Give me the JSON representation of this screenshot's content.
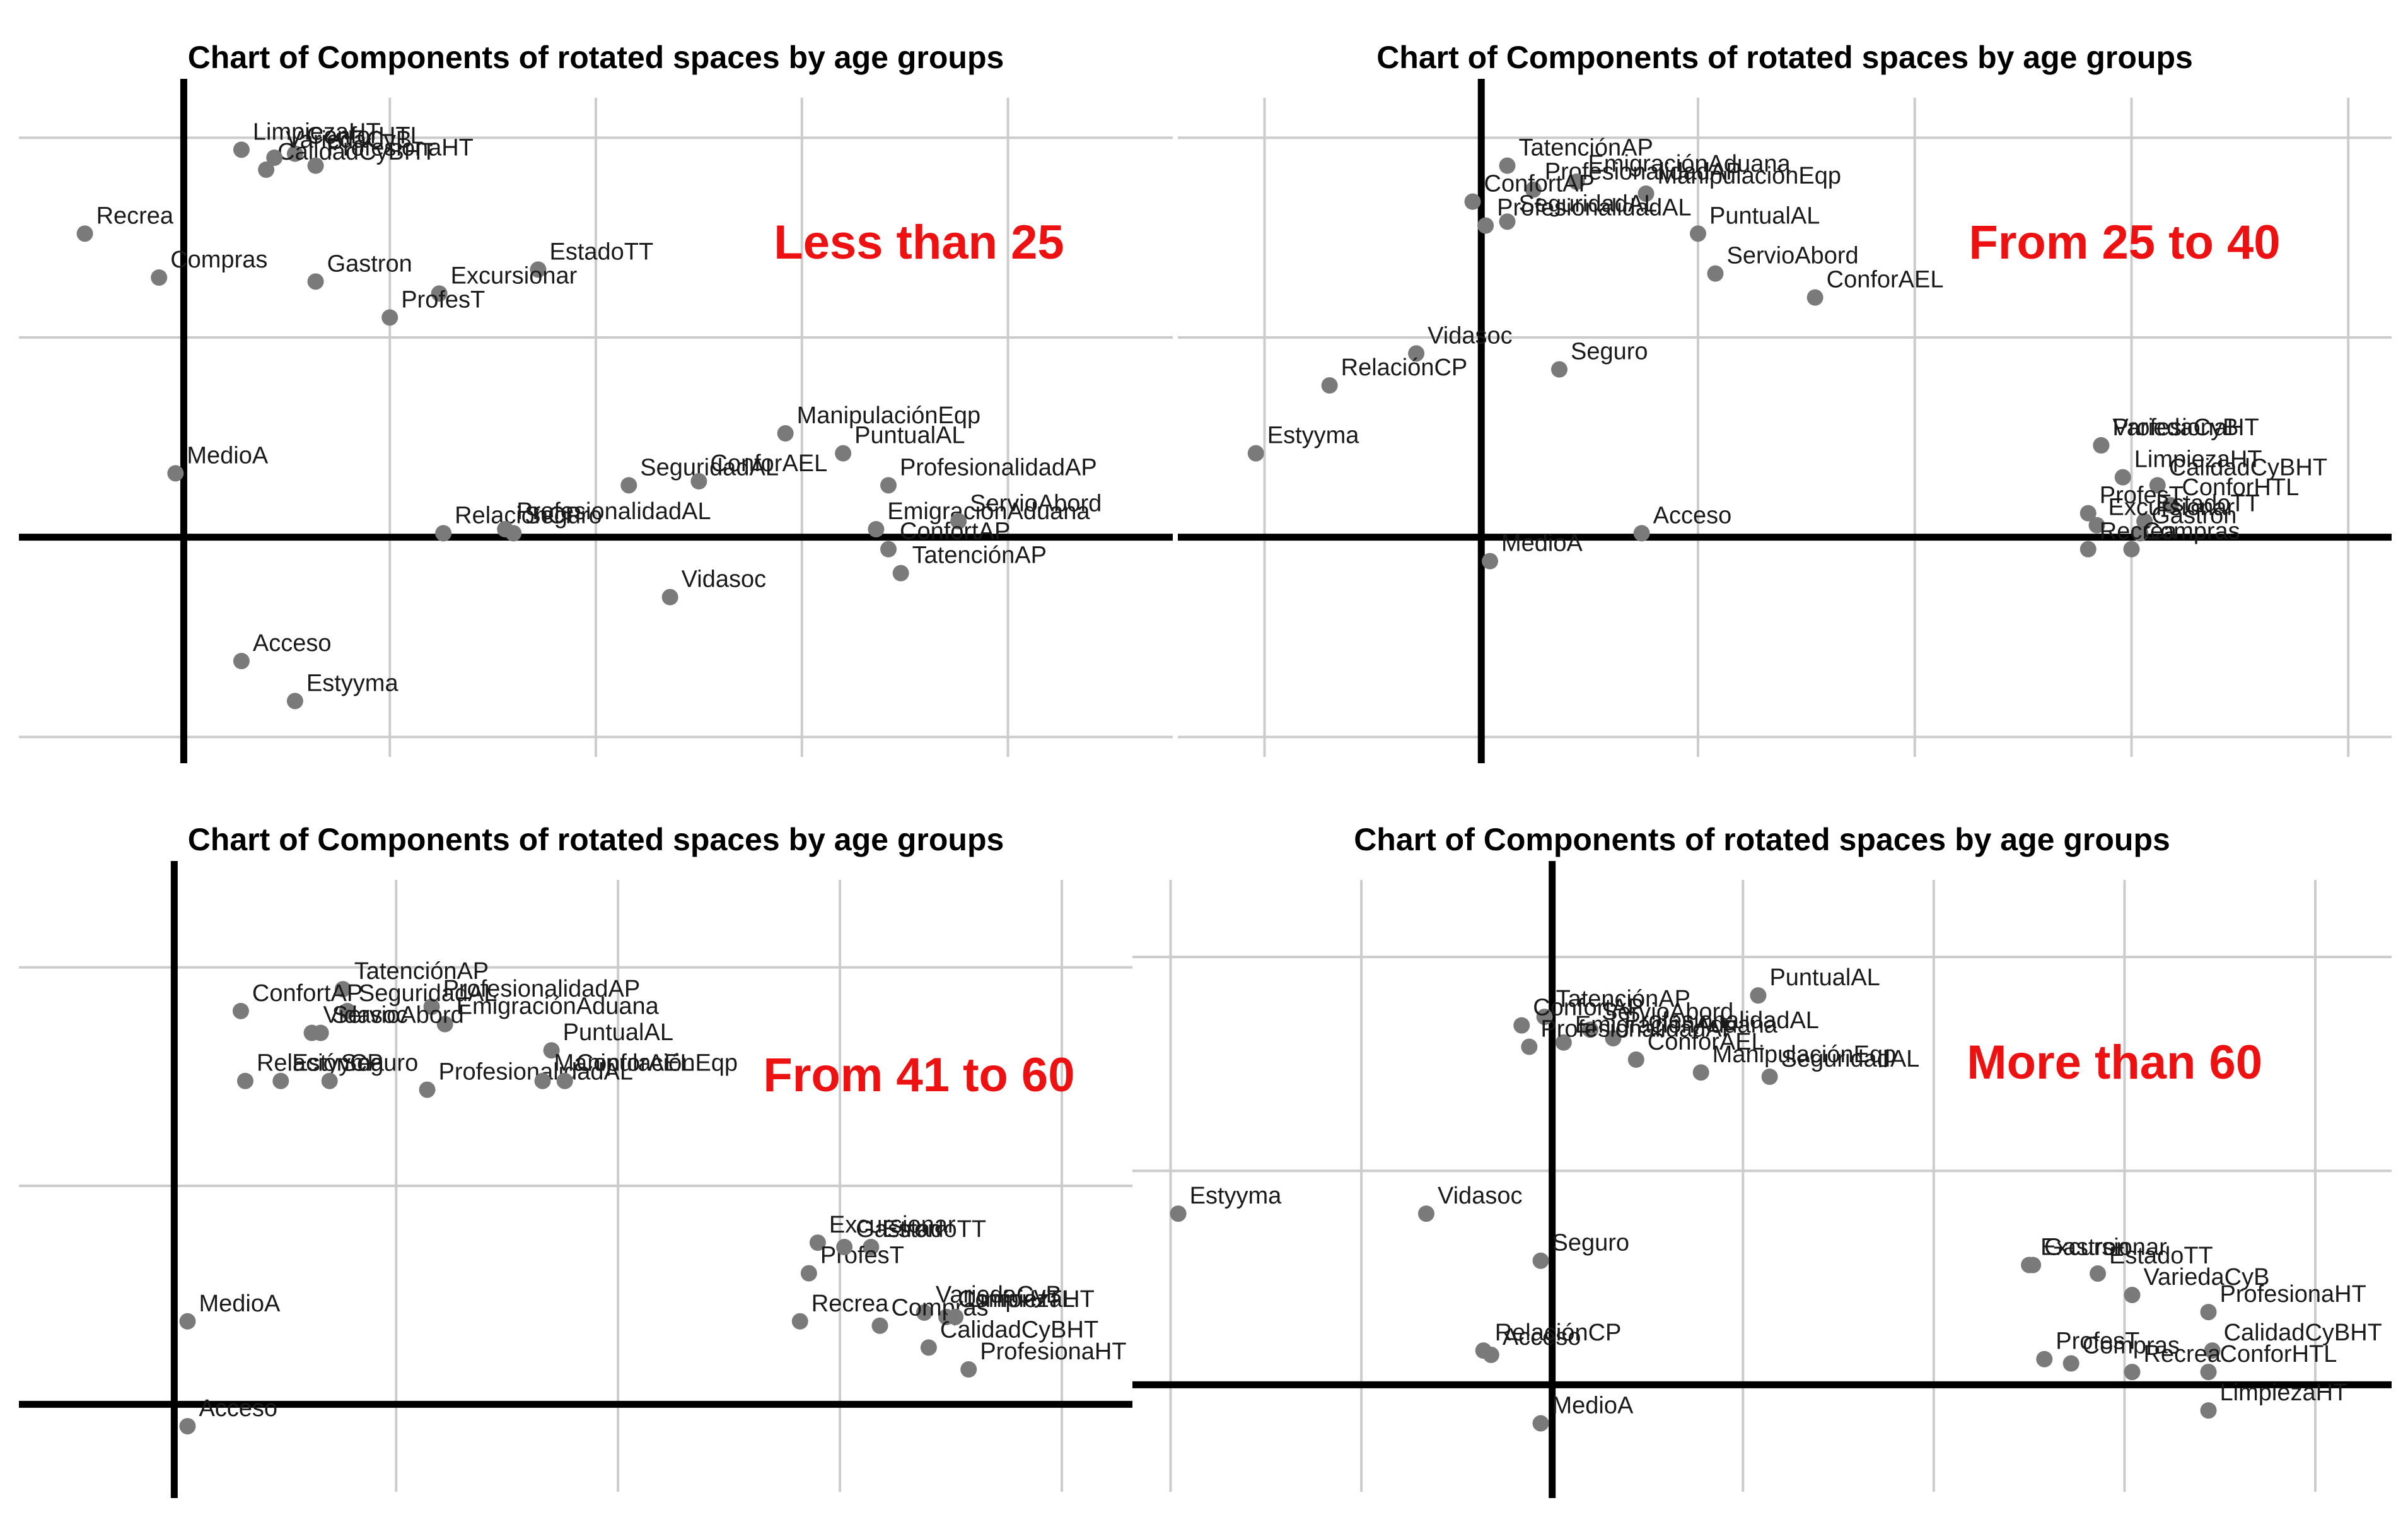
{
  "figure": {
    "accent_color": "#ee1111",
    "point_color": "#7a7a7a",
    "grid_color": "#cccccc",
    "axis_color": "#000000"
  },
  "chart_data": [
    {
      "type": "scatter",
      "title": "Chart of Components of rotated spaces by age groups",
      "group_label": "Less than 25",
      "grid": true,
      "xlim": [
        -0.4,
        2.4
      ],
      "ylim": [
        -0.55,
        1.1
      ],
      "points": [
        {
          "label": "LimpiezaHT",
          "x": 0.14,
          "y": 0.97
        },
        {
          "label": "ConforHTL",
          "x": 0.27,
          "y": 0.96
        },
        {
          "label": "CalidadCyBHT",
          "x": 0.2,
          "y": 0.92
        },
        {
          "label": "ProfesionaHT",
          "x": 0.32,
          "y": 0.93
        },
        {
          "label": "VariedaCyB",
          "x": 0.22,
          "y": 0.95
        },
        {
          "label": "Recrea",
          "x": -0.24,
          "y": 0.76
        },
        {
          "label": "Compras",
          "x": -0.06,
          "y": 0.65
        },
        {
          "label": "Gastron",
          "x": 0.32,
          "y": 0.64
        },
        {
          "label": "EstadoTT",
          "x": 0.86,
          "y": 0.67
        },
        {
          "label": "Excursionar",
          "x": 0.62,
          "y": 0.61
        },
        {
          "label": "ProfesT",
          "x": 0.5,
          "y": 0.55
        },
        {
          "label": "MedioA",
          "x": -0.02,
          "y": 0.16
        },
        {
          "label": "ManipulaciónEqp",
          "x": 1.46,
          "y": 0.26
        },
        {
          "label": "PuntualAL",
          "x": 1.6,
          "y": 0.21
        },
        {
          "label": "SeguridadAL",
          "x": 1.08,
          "y": 0.13
        },
        {
          "label": "ConforAEL",
          "x": 1.25,
          "y": 0.14
        },
        {
          "label": "ProfesionalidadAP",
          "x": 1.71,
          "y": 0.13
        },
        {
          "label": "RelaciónCP",
          "x": 0.63,
          "y": 0.01
        },
        {
          "label": "ProfesionalidadAL",
          "x": 0.78,
          "y": 0.02
        },
        {
          "label": "EmigraciónAduana",
          "x": 1.68,
          "y": 0.02
        },
        {
          "label": "ServioAbord",
          "x": 1.88,
          "y": 0.04
        },
        {
          "label": "Seguro",
          "x": 0.8,
          "y": 0.01
        },
        {
          "label": "Vidasoc",
          "x": 1.18,
          "y": -0.15
        },
        {
          "label": "ConfortAP",
          "x": 1.71,
          "y": -0.03
        },
        {
          "label": "TatenciónAP",
          "x": 1.74,
          "y": -0.09
        },
        {
          "label": "Acceso",
          "x": 0.14,
          "y": -0.31
        },
        {
          "label": "Estyyma",
          "x": 0.27,
          "y": -0.41
        }
      ]
    },
    {
      "type": "scatter",
      "title": "Chart of Components of rotated spaces by age groups",
      "group_label": "From 25 to 40",
      "grid": true,
      "xlim": [
        -0.7,
        2.1
      ],
      "ylim": [
        -0.55,
        1.1
      ],
      "points": [
        {
          "label": "TatenciónAP",
          "x": 0.06,
          "y": 0.93
        },
        {
          "label": "ProfesionalidadAP",
          "x": 0.12,
          "y": 0.87
        },
        {
          "label": "EmigraciónAduana",
          "x": 0.22,
          "y": 0.89
        },
        {
          "label": "ConfortAP",
          "x": -0.02,
          "y": 0.84
        },
        {
          "label": "ManipulaciónEqp",
          "x": 0.38,
          "y": 0.86
        },
        {
          "label": "SeguridadAL",
          "x": 0.06,
          "y": 0.79
        },
        {
          "label": "ProfesionalidadAL",
          "x": 0.01,
          "y": 0.78
        },
        {
          "label": "PuntualAL",
          "x": 0.5,
          "y": 0.76
        },
        {
          "label": "ServioAbord",
          "x": 0.54,
          "y": 0.66
        },
        {
          "label": "ConforAEL",
          "x": 0.77,
          "y": 0.6
        },
        {
          "label": "Vidasoc",
          "x": -0.15,
          "y": 0.46
        },
        {
          "label": "Seguro",
          "x": 0.18,
          "y": 0.42
        },
        {
          "label": "RelaciónCP",
          "x": -0.35,
          "y": 0.38
        },
        {
          "label": "Estyyma",
          "x": -0.52,
          "y": 0.21
        },
        {
          "label": "VariedaCyB",
          "x": 1.43,
          "y": 0.23
        },
        {
          "label": "ProfesionaHT",
          "x": 1.43,
          "y": 0.23
        },
        {
          "label": "LimpiezaHT",
          "x": 1.48,
          "y": 0.15
        },
        {
          "label": "CalidadCyBHT",
          "x": 1.56,
          "y": 0.13
        },
        {
          "label": "ConforHTL",
          "x": 1.59,
          "y": 0.08
        },
        {
          "label": "ProfesT",
          "x": 1.4,
          "y": 0.06
        },
        {
          "label": "EstadoTT",
          "x": 1.53,
          "y": 0.04
        },
        {
          "label": "Excursionar",
          "x": 1.42,
          "y": 0.03
        },
        {
          "label": "Gastron",
          "x": 1.52,
          "y": 0.01
        },
        {
          "label": "Compras",
          "x": 1.5,
          "y": -0.03
        },
        {
          "label": "Recrea",
          "x": 1.4,
          "y": -0.03
        },
        {
          "label": "Acceso",
          "x": 0.37,
          "y": 0.01
        },
        {
          "label": "MedioA",
          "x": 0.02,
          "y": -0.06
        }
      ]
    },
    {
      "type": "scatter",
      "title": "Chart of Components of rotated spaces by age groups",
      "group_label": "From 41 to 60",
      "grid": true,
      "xlim": [
        -0.35,
        2.25
      ],
      "ylim": [
        -0.2,
        1.2
      ],
      "points": [
        {
          "label": "TatenciónAP",
          "x": 0.38,
          "y": 0.95
        },
        {
          "label": "ProfesionalidadAP",
          "x": 0.58,
          "y": 0.91
        },
        {
          "label": "ConfortAP",
          "x": 0.15,
          "y": 0.9
        },
        {
          "label": "SeguridadAL",
          "x": 0.39,
          "y": 0.9
        },
        {
          "label": "EmigraciónAduana",
          "x": 0.61,
          "y": 0.87
        },
        {
          "label": "ServioAbord",
          "x": 0.33,
          "y": 0.85
        },
        {
          "label": "PuntualAL",
          "x": 0.85,
          "y": 0.81
        },
        {
          "label": "Vidasoc",
          "x": 0.31,
          "y": 0.85
        },
        {
          "label": "Estyyma",
          "x": 0.24,
          "y": 0.74
        },
        {
          "label": "Seguro",
          "x": 0.35,
          "y": 0.74
        },
        {
          "label": "RelaciónCP",
          "x": 0.16,
          "y": 0.74
        },
        {
          "label": "ProfesionalidadAL",
          "x": 0.57,
          "y": 0.72
        },
        {
          "label": "ConforAEL",
          "x": 0.88,
          "y": 0.74
        },
        {
          "label": "ManipulaciónEqp",
          "x": 0.83,
          "y": 0.74
        },
        {
          "label": "EstadoTT",
          "x": 1.57,
          "y": 0.36
        },
        {
          "label": "Excursionar",
          "x": 1.45,
          "y": 0.37
        },
        {
          "label": "ProfesT",
          "x": 1.43,
          "y": 0.3
        },
        {
          "label": "Gastron",
          "x": 1.51,
          "y": 0.36
        },
        {
          "label": "VariedaCyB",
          "x": 1.69,
          "y": 0.21
        },
        {
          "label": "ConforHTL",
          "x": 1.74,
          "y": 0.2
        },
        {
          "label": "Recrea",
          "x": 1.41,
          "y": 0.19
        },
        {
          "label": "Compras",
          "x": 1.59,
          "y": 0.18
        },
        {
          "label": "ProfesionaHT",
          "x": 1.79,
          "y": 0.08
        },
        {
          "label": "CalidadCyBHT",
          "x": 1.7,
          "y": 0.13
        },
        {
          "label": "LimpiezaHT",
          "x": 1.76,
          "y": 0.2
        },
        {
          "label": "MedioA",
          "x": 0.03,
          "y": 0.19
        },
        {
          "label": "Acceso",
          "x": 0.03,
          "y": -0.05
        }
      ]
    },
    {
      "type": "scatter",
      "title": "Chart of Components of rotated spaces by age groups",
      "group_label": "More than 60",
      "grid": true,
      "xlim": [
        -1.1,
        2.2
      ],
      "ylim": [
        -0.25,
        1.18
      ],
      "points": [
        {
          "label": "PuntualAL",
          "x": 0.54,
          "y": 0.91
        },
        {
          "label": "TatenciónAP",
          "x": -0.02,
          "y": 0.86
        },
        {
          "label": "ServioAbord",
          "x": 0.1,
          "y": 0.83
        },
        {
          "label": "ConfortAP",
          "x": -0.08,
          "y": 0.84
        },
        {
          "label": "ProfesionalidadAL",
          "x": 0.16,
          "y": 0.81
        },
        {
          "label": "EmigraciónAduana",
          "x": 0.03,
          "y": 0.8
        },
        {
          "label": "SeguridadAL",
          "x": 0.57,
          "y": 0.72
        },
        {
          "label": "ProfesionalidadAP",
          "x": -0.06,
          "y": 0.79
        },
        {
          "label": "ManipulaciónEqp",
          "x": 0.39,
          "y": 0.73
        },
        {
          "label": "ConforAEL",
          "x": 0.22,
          "y": 0.76
        },
        {
          "label": "Estyyma",
          "x": -0.98,
          "y": 0.4
        },
        {
          "label": "Vidasoc",
          "x": -0.33,
          "y": 0.4
        },
        {
          "label": "Seguro",
          "x": -0.03,
          "y": 0.29
        },
        {
          "label": "RelaciónCP",
          "x": -0.18,
          "y": 0.08
        },
        {
          "label": "Acceso",
          "x": -0.16,
          "y": 0.07
        },
        {
          "label": "MedioA",
          "x": -0.03,
          "y": -0.09
        },
        {
          "label": "EstadoTT",
          "x": 1.43,
          "y": 0.26
        },
        {
          "label": "Gastron",
          "x": 1.26,
          "y": 0.28
        },
        {
          "label": "Excursionar",
          "x": 1.25,
          "y": 0.28
        },
        {
          "label": "VariedaCyB",
          "x": 1.52,
          "y": 0.21
        },
        {
          "label": "ProfesionaHT",
          "x": 1.72,
          "y": 0.17
        },
        {
          "label": "CalidadCyBHT",
          "x": 1.73,
          "y": 0.08
        },
        {
          "label": "Compras",
          "x": 1.36,
          "y": 0.05
        },
        {
          "label": "ProfesT",
          "x": 1.29,
          "y": 0.06
        },
        {
          "label": "Recrea",
          "x": 1.52,
          "y": 0.03
        },
        {
          "label": "ConforHTL",
          "x": 1.72,
          "y": 0.03
        },
        {
          "label": "LimpiezaHT",
          "x": 1.72,
          "y": -0.06
        }
      ]
    }
  ]
}
